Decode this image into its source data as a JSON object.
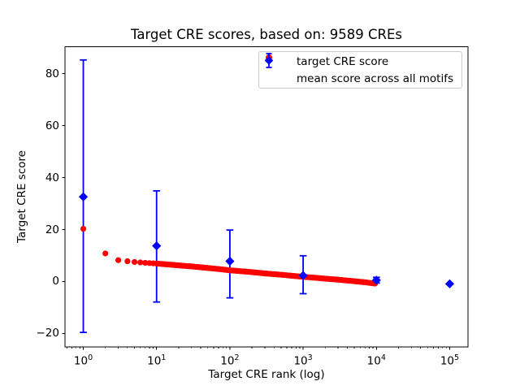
{
  "figure": {
    "background": "#ffffff"
  },
  "chart_data": {
    "type": "scatter",
    "title": "Target CRE scores, based on: 9589 CREs",
    "xlabel": "Target CRE rank (log)",
    "ylabel": "Target CRE score",
    "x_scale": "log",
    "xlim_log10": [
      -0.25,
      5.25
    ],
    "ylim": [
      -25.2,
      90.4
    ],
    "grid": false,
    "x_tick_base": "10",
    "x_tick_exponents": [
      0,
      1,
      2,
      3,
      4,
      5
    ],
    "y_ticks": [
      {
        "value": -20,
        "label": "−20"
      },
      {
        "value": 0,
        "label": "0"
      },
      {
        "value": 20,
        "label": "20"
      },
      {
        "value": 40,
        "label": "40"
      },
      {
        "value": 60,
        "label": "60"
      },
      {
        "value": 80,
        "label": "80"
      }
    ],
    "legend": {
      "position": "upper right",
      "entries": [
        {
          "label": "target CRE score",
          "marker": "circle",
          "color": "#ff0000"
        },
        {
          "label": "mean score across all motifs",
          "marker": "diamond-errorbar",
          "color": "#0000ff"
        }
      ]
    },
    "series": [
      {
        "name": "target CRE score",
        "type": "scatter",
        "marker": "circle",
        "color": "#ff0000",
        "points": [
          [
            1,
            20.3
          ],
          [
            2,
            10.8
          ],
          [
            3,
            8.2
          ],
          [
            4,
            7.8
          ],
          [
            5,
            7.5
          ],
          [
            7,
            7.2
          ],
          [
            10,
            6.9
          ],
          [
            15,
            6.5
          ],
          [
            20,
            6.2
          ],
          [
            30,
            5.8
          ],
          [
            50,
            5.2
          ],
          [
            70,
            4.8
          ],
          [
            100,
            4.3
          ],
          [
            150,
            3.9
          ],
          [
            200,
            3.6
          ],
          [
            300,
            3.1
          ],
          [
            500,
            2.6
          ],
          [
            700,
            2.2
          ],
          [
            1000,
            1.8
          ],
          [
            1500,
            1.4
          ],
          [
            2000,
            1.1
          ],
          [
            3000,
            0.7
          ],
          [
            5000,
            0.1
          ],
          [
            7000,
            -0.3
          ],
          [
            9589,
            -0.8
          ]
        ]
      },
      {
        "name": "mean score across all motifs",
        "type": "errorbar",
        "marker": "diamond",
        "color": "#0000ff",
        "points": [
          {
            "x": 1,
            "mean": 32.6,
            "lo": -19.6,
            "hi": 85.3
          },
          {
            "x": 10,
            "mean": 13.7,
            "lo": -7.9,
            "hi": 34.9
          },
          {
            "x": 100,
            "mean": 7.8,
            "lo": -6.3,
            "hi": 19.8
          },
          {
            "x": 1000,
            "mean": 2.3,
            "lo": -4.7,
            "hi": 9.9
          },
          {
            "x": 10000,
            "mean": 0.5,
            "lo": -0.6,
            "hi": 1.6
          },
          {
            "x": 100000,
            "mean": -0.9,
            "lo": -0.9,
            "hi": -0.9
          }
        ]
      }
    ]
  }
}
